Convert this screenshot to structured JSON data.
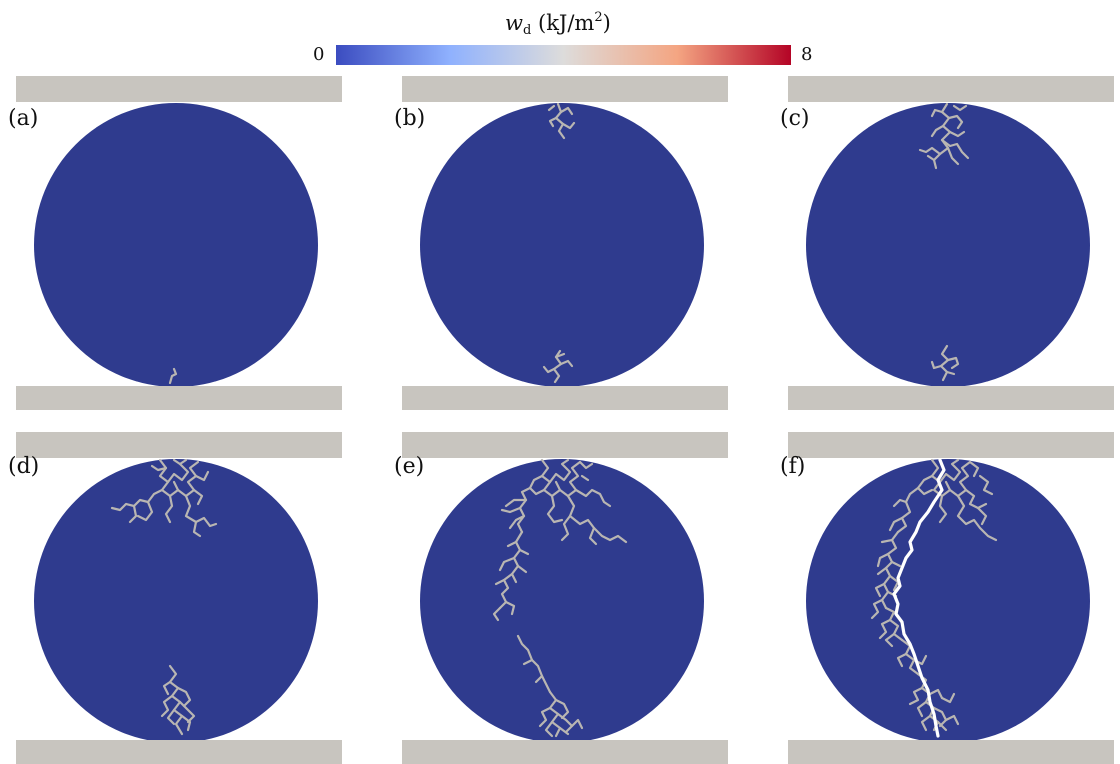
{
  "colorbar": {
    "title_var": "w",
    "title_sub": "d",
    "title_unit_pre": "(kJ/m",
    "title_unit_sup": "2",
    "title_unit_post": ")",
    "min_label": "0",
    "max_label": "8",
    "colors": [
      "#3b4cc0",
      "#8fb1fe",
      "#dddcdb",
      "#f4a582",
      "#b40426"
    ]
  },
  "colors": {
    "disk": "#2f3b8e",
    "platen": "#c8c5bf",
    "crack_branch": "#b9b6b2",
    "main_crack": "#ffffff"
  },
  "panels": [
    {
      "label": "(a)",
      "stage": "a"
    },
    {
      "label": "(b)",
      "stage": "b"
    },
    {
      "label": "(c)",
      "stage": "c"
    },
    {
      "label": "(d)",
      "stage": "d"
    },
    {
      "label": "(e)",
      "stage": "e"
    },
    {
      "label": "(f)",
      "stage": "f"
    }
  ]
}
